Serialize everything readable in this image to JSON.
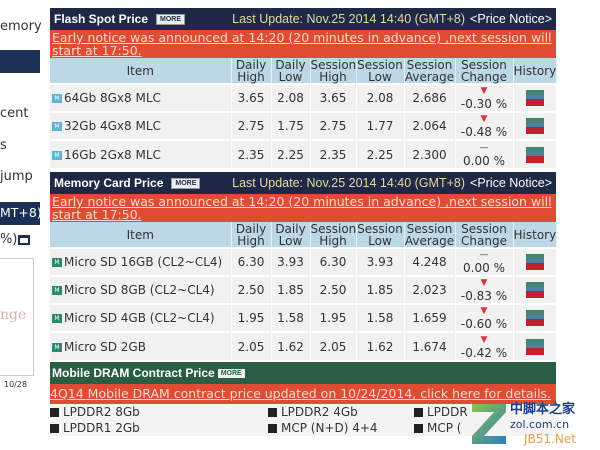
{
  "sidebar": {
    "t1": "emory",
    "t2": "cent",
    "t3": "s",
    "t4": "jump",
    "t5": "MT+8)",
    "t6": "%)",
    "chart_label": "nge",
    "chart_tick": "10/28"
  },
  "flash": {
    "title": "Flash Spot Price",
    "more": "MORE",
    "update": "Last Update: Nov.25 2014 14:40 (GMT+8)",
    "price_notice": "<Price Notice>",
    "notice": "Early notice was announced at 14:20 (20 minutes in advance) ,next session will start at 17:50.",
    "headers": [
      "Item",
      "Daily High",
      "Daily Low",
      "Session High",
      "Session Low",
      "Session Average",
      "Session Change",
      "History"
    ],
    "rows": [
      {
        "item": "64Gb 8Gx8 MLC",
        "dh": "3.65",
        "dl": "2.08",
        "sh": "3.65",
        "sl": "2.08",
        "avg": "2.686",
        "chg": "-0.30 %",
        "dir": "down"
      },
      {
        "item": "32Gb 4Gx8 MLC",
        "dh": "2.75",
        "dl": "1.75",
        "sh": "2.75",
        "sl": "1.77",
        "avg": "2.064",
        "chg": "-0.48 %",
        "dir": "down"
      },
      {
        "item": "16Gb 2Gx8 MLC",
        "dh": "2.35",
        "dl": "2.25",
        "sh": "2.35",
        "sl": "2.25",
        "avg": "2.300",
        "chg": "0.00 %",
        "dir": "flat"
      }
    ]
  },
  "card": {
    "title": "Memory Card Price",
    "more": "MORE",
    "update": "Last Update: Nov.25 2014 14:40 (GMT+8)",
    "price_notice": "<Price Notice>",
    "notice": "Early notice was announced at 14:20 (20 minutes in advance) ,next session will start at 17:50.",
    "headers": [
      "Item",
      "Daily High",
      "Daily Low",
      "Session High",
      "Session Low",
      "Session Average",
      "Session Change",
      "History"
    ],
    "rows": [
      {
        "item": "Micro SD 16GB (CL2~CL4)",
        "dh": "6.30",
        "dl": "3.93",
        "sh": "6.30",
        "sl": "3.93",
        "avg": "4.248",
        "chg": "0.00 %",
        "dir": "flat"
      },
      {
        "item": "Micro SD 8GB (CL2~CL4)",
        "dh": "2.50",
        "dl": "1.85",
        "sh": "2.50",
        "sl": "1.85",
        "avg": "2.023",
        "chg": "-0.83 %",
        "dir": "down"
      },
      {
        "item": "Micro SD 4GB (CL2~CL4)",
        "dh": "1.95",
        "dl": "1.58",
        "sh": "1.95",
        "sl": "1.58",
        "avg": "1.659",
        "chg": "-0.60 %",
        "dir": "down"
      },
      {
        "item": "Micro SD 2GB",
        "dh": "2.05",
        "dl": "1.62",
        "sh": "2.05",
        "sl": "1.62",
        "avg": "1.674",
        "chg": "-0.42 %",
        "dir": "down"
      }
    ]
  },
  "mobile": {
    "title": "Mobile DRAM Contract Price",
    "more": "MORE",
    "link": "4Q14 Mobile DRAM contract price updated on 10/24/2014, click here for details.",
    "items": [
      "LPDDR2 8Gb",
      "LPDDR2 4Gb",
      "LPDDR",
      "LPDDR1 2Gb",
      "MCP (N+D) 4+4",
      "MCP ("
    ]
  },
  "watermark": {
    "text1": "中脚本之家",
    "text2": "zol.com.cn",
    "text3": "JB51.Net"
  },
  "colors": {
    "navy": "#1e2a45",
    "notice_red": "#e04b34",
    "header_blue": "#bcd7e6",
    "green": "#2a5e44",
    "down": "#e0303a"
  }
}
